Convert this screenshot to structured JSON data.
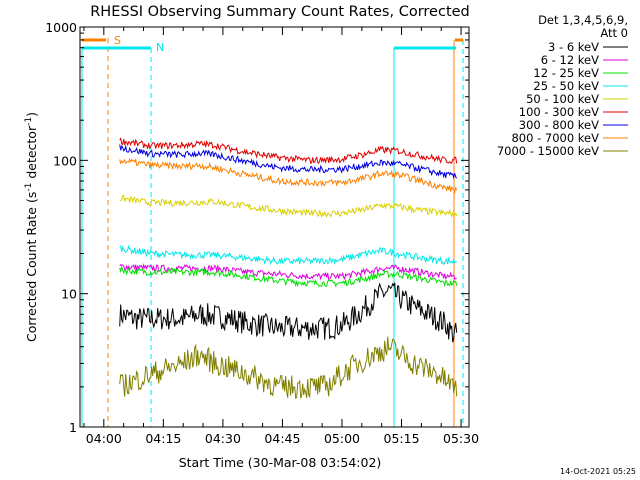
{
  "chart_data": {
    "type": "line",
    "title": "RHESSI Observing Summary Count Rates, Corrected",
    "xlabel": "Start Time (30-Mar-08 03:54:02)",
    "ylabel": "Corrected Count Rate (s⁻¹ detector⁻¹)",
    "ylabel_main": "Corrected Count Rate (s",
    "ylabel_sup1": "-1",
    "ylabel_mid": " detector",
    "ylabel_sup2": "-1",
    "ylabel_end": ")",
    "x_tick_labels": [
      "04:00",
      "04:15",
      "04:30",
      "04:45",
      "05:00",
      "05:15",
      "05:30"
    ],
    "x_ticks_min": [
      6,
      21,
      36,
      51,
      66,
      81,
      96
    ],
    "xlim_min": [
      0,
      98
    ],
    "y_scale": "log",
    "ylim": [
      1,
      1000
    ],
    "y_tick_labels": [
      "1",
      "10",
      "100",
      "1000"
    ],
    "y_tick_values": [
      1,
      10,
      100,
      1000
    ],
    "detectors_line1": "Det 1,3,4,5,6,9,",
    "detectors_line2": "Att 0",
    "legend_position": "right",
    "series": [
      {
        "name": "3 - 6 keV",
        "color": "#000000",
        "x": [
          10,
          14,
          18,
          22,
          26,
          30,
          34,
          38,
          42,
          46,
          50,
          54,
          58,
          62,
          66,
          70,
          74,
          76,
          78,
          80,
          84,
          88,
          92,
          94,
          95
        ],
        "y": [
          7,
          6.5,
          6.5,
          6.5,
          6.5,
          7,
          6.8,
          6.5,
          6,
          5.8,
          5.5,
          5.5,
          5.5,
          5.5,
          5.8,
          7,
          9,
          10,
          10.5,
          9.5,
          8,
          7,
          6,
          5,
          5
        ]
      },
      {
        "name": "6 - 12 keV",
        "color": "#e000e0",
        "x": [
          10,
          18,
          26,
          34,
          42,
          50,
          58,
          66,
          72,
          76,
          80,
          86,
          92,
          95
        ],
        "y": [
          16,
          15.5,
          15.5,
          15.5,
          14.5,
          14,
          13.5,
          13.5,
          14.5,
          15.5,
          15.5,
          14.5,
          13.5,
          13.5
        ]
      },
      {
        "name": "12 - 25 keV",
        "color": "#00e000",
        "x": [
          10,
          18,
          26,
          34,
          42,
          50,
          58,
          66,
          72,
          76,
          80,
          86,
          92,
          95
        ],
        "y": [
          15,
          14.5,
          14.5,
          14.5,
          13.5,
          12.5,
          12,
          12,
          13,
          14,
          14,
          13,
          12,
          12
        ]
      },
      {
        "name": "25 - 50 keV",
        "color": "#00e8e8",
        "x": [
          10,
          18,
          26,
          34,
          42,
          50,
          58,
          66,
          72,
          76,
          80,
          86,
          92,
          95
        ],
        "y": [
          22,
          20,
          19.5,
          19.5,
          18.5,
          17.5,
          17.5,
          18,
          20,
          21,
          20,
          18.5,
          17.5,
          17.5
        ]
      },
      {
        "name": "50 - 100 keV",
        "color": "#d8d000",
        "x": [
          10,
          18,
          26,
          34,
          42,
          50,
          58,
          66,
          72,
          76,
          80,
          86,
          92,
          95
        ],
        "y": [
          52,
          48,
          48,
          49,
          45,
          42,
          40,
          40,
          43,
          46,
          45,
          42,
          40,
          40
        ]
      },
      {
        "name": "100 - 300 keV",
        "color": "#e00000",
        "x": [
          10,
          18,
          26,
          30,
          34,
          42,
          50,
          58,
          66,
          72,
          76,
          80,
          86,
          92,
          95
        ],
        "y": [
          140,
          128,
          130,
          133,
          130,
          115,
          105,
          100,
          102,
          112,
          120,
          118,
          108,
          100,
          100
        ]
      },
      {
        "name": "300 - 800 keV",
        "color": "#0000e0",
        "x": [
          10,
          18,
          26,
          30,
          34,
          42,
          50,
          58,
          66,
          72,
          76,
          80,
          86,
          92,
          95
        ],
        "y": [
          125,
          112,
          110,
          113,
          110,
          98,
          88,
          85,
          86,
          92,
          96,
          94,
          86,
          78,
          75
        ]
      },
      {
        "name": "800 - 7000 keV",
        "color": "#ff8000",
        "x": [
          10,
          18,
          26,
          30,
          34,
          42,
          50,
          58,
          66,
          72,
          76,
          80,
          86,
          92,
          95
        ],
        "y": [
          100,
          92,
          90,
          92,
          88,
          78,
          70,
          68,
          68,
          74,
          80,
          78,
          70,
          62,
          60
        ]
      },
      {
        "name": "7000 - 15000 keV",
        "color": "#808000",
        "x": [
          10,
          18,
          26,
          30,
          34,
          42,
          50,
          58,
          62,
          66,
          70,
          74,
          78,
          84,
          90,
          94,
          95
        ],
        "y": [
          2,
          2.5,
          3,
          3.5,
          3,
          2.5,
          2,
          2,
          2,
          2.5,
          3,
          3.5,
          4,
          3,
          2.5,
          2,
          2
        ]
      }
    ],
    "attenuator_labels": [
      "S",
      "N"
    ]
  },
  "timestamp": "14-Oct-2021 05:25"
}
